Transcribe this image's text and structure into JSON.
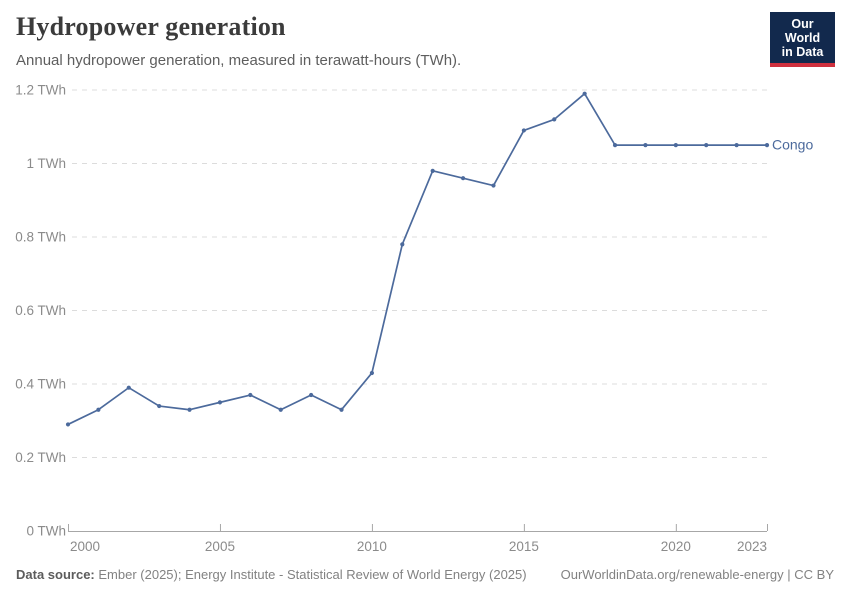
{
  "header": {
    "title": "Hydropower generation",
    "subtitle": "Annual hydropower generation, measured in terawatt-hours (TWh)."
  },
  "logo": {
    "line1": "Our World",
    "line2": "in Data",
    "bg_color": "#12294d",
    "accent_color": "#cf303e"
  },
  "chart_data": {
    "type": "line",
    "title": "Hydropower generation",
    "unit": "TWh",
    "x": [
      2000,
      2001,
      2002,
      2003,
      2004,
      2005,
      2006,
      2007,
      2008,
      2009,
      2010,
      2011,
      2012,
      2013,
      2014,
      2015,
      2016,
      2017,
      2018,
      2019,
      2020,
      2021,
      2022,
      2023
    ],
    "series": [
      {
        "name": "Congo",
        "color": "#4c6a9c",
        "values": [
          0.29,
          0.33,
          0.39,
          0.34,
          0.33,
          0.35,
          0.37,
          0.33,
          0.37,
          0.33,
          0.43,
          0.78,
          0.98,
          0.96,
          0.94,
          1.09,
          1.12,
          1.19,
          1.05,
          1.05,
          1.05,
          1.05,
          1.05,
          1.05
        ]
      }
    ],
    "xlim": [
      2000,
      2023
    ],
    "ylim": [
      0,
      1.2
    ],
    "xticks": [
      2000,
      2005,
      2010,
      2015,
      2020,
      2023
    ],
    "yticks": [
      0,
      0.2,
      0.4,
      0.6,
      0.8,
      1,
      1.2
    ],
    "ytick_labels": [
      "0 TWh",
      "0.2 TWh",
      "0.4 TWh",
      "0.6 TWh",
      "0.8 TWh",
      "1 TWh",
      "1.2 TWh"
    ],
    "grid": "horizontal-dashed",
    "legend_position": "line-end"
  },
  "footer": {
    "source_label": "Data source:",
    "source_text": "Ember (2025); Energy Institute - Statistical Review of World Energy (2025)",
    "link_text": "OurWorldinData.org/renewable-energy | CC BY"
  }
}
